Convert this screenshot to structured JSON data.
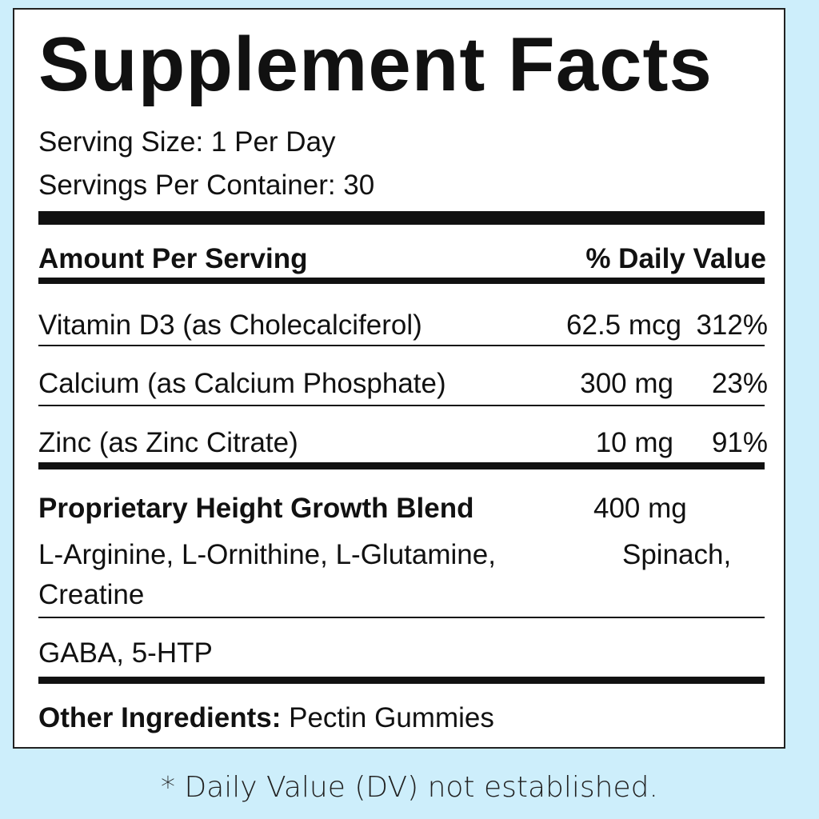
{
  "title": "Supplement Facts",
  "serving_size": "Serving Size: 1 Per Day",
  "servings_per_container": "Servings Per Container:  30",
  "header": {
    "amount": "Amount Per Serving",
    "dv": "% Daily Value"
  },
  "nutrients": [
    {
      "name": "Vitamin D3 (as Cholecalciferol)",
      "amount": "62.5 mcg",
      "dv": "312%"
    },
    {
      "name": "Calcium (as Calcium Phosphate)",
      "amount": "300 mg",
      "dv": "23%"
    },
    {
      "name": "Zinc (as Zinc Citrate)",
      "amount": "10 mg",
      "dv": "91%"
    }
  ],
  "blend": {
    "name": "Proprietary Height Growth Blend",
    "amount": "400 mg",
    "ingredients_line1": "L-Arginine, L-Ornithine, L-Glutamine,",
    "ingredients_line1b": "Spinach,",
    "ingredients_line2": "Creatine",
    "extra": "GABA, 5-HTP"
  },
  "other": {
    "label": "Other Ingredients:",
    "value": " Pectin Gummies"
  },
  "footnote": "* Daily Value (DV) not established.",
  "colors": {
    "background": "#cdeefb",
    "label": "#ffffff",
    "text": "#111111"
  }
}
